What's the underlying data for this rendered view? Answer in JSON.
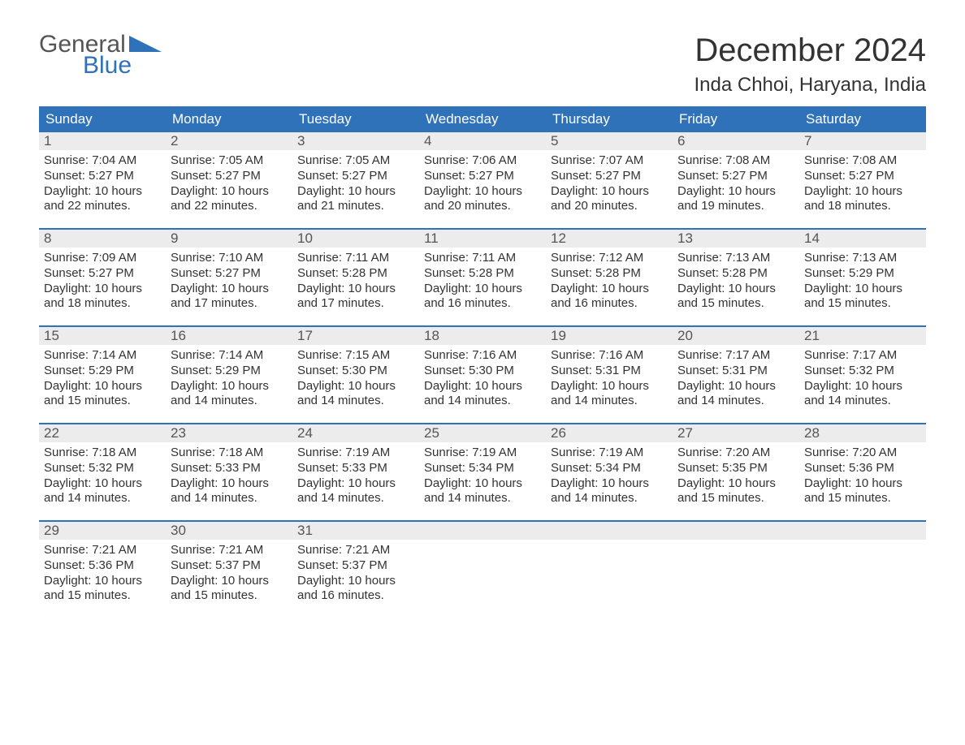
{
  "logo": {
    "part1": "General",
    "part2": "Blue"
  },
  "title": "December 2024",
  "location": "Inda Chhoi, Haryana, India",
  "colors": {
    "header_bg": "#2f72b9",
    "header_text": "#ffffff",
    "daynum_bg": "#ececec",
    "text": "#333333",
    "logo_gray": "#555555",
    "logo_blue": "#2f72b9"
  },
  "dayNames": [
    "Sunday",
    "Monday",
    "Tuesday",
    "Wednesday",
    "Thursday",
    "Friday",
    "Saturday"
  ],
  "weeks": [
    [
      {
        "n": "1",
        "sr": "Sunrise: 7:04 AM",
        "ss": "Sunset: 5:27 PM",
        "dl1": "Daylight: 10 hours",
        "dl2": "and 22 minutes."
      },
      {
        "n": "2",
        "sr": "Sunrise: 7:05 AM",
        "ss": "Sunset: 5:27 PM",
        "dl1": "Daylight: 10 hours",
        "dl2": "and 22 minutes."
      },
      {
        "n": "3",
        "sr": "Sunrise: 7:05 AM",
        "ss": "Sunset: 5:27 PM",
        "dl1": "Daylight: 10 hours",
        "dl2": "and 21 minutes."
      },
      {
        "n": "4",
        "sr": "Sunrise: 7:06 AM",
        "ss": "Sunset: 5:27 PM",
        "dl1": "Daylight: 10 hours",
        "dl2": "and 20 minutes."
      },
      {
        "n": "5",
        "sr": "Sunrise: 7:07 AM",
        "ss": "Sunset: 5:27 PM",
        "dl1": "Daylight: 10 hours",
        "dl2": "and 20 minutes."
      },
      {
        "n": "6",
        "sr": "Sunrise: 7:08 AM",
        "ss": "Sunset: 5:27 PM",
        "dl1": "Daylight: 10 hours",
        "dl2": "and 19 minutes."
      },
      {
        "n": "7",
        "sr": "Sunrise: 7:08 AM",
        "ss": "Sunset: 5:27 PM",
        "dl1": "Daylight: 10 hours",
        "dl2": "and 18 minutes."
      }
    ],
    [
      {
        "n": "8",
        "sr": "Sunrise: 7:09 AM",
        "ss": "Sunset: 5:27 PM",
        "dl1": "Daylight: 10 hours",
        "dl2": "and 18 minutes."
      },
      {
        "n": "9",
        "sr": "Sunrise: 7:10 AM",
        "ss": "Sunset: 5:27 PM",
        "dl1": "Daylight: 10 hours",
        "dl2": "and 17 minutes."
      },
      {
        "n": "10",
        "sr": "Sunrise: 7:11 AM",
        "ss": "Sunset: 5:28 PM",
        "dl1": "Daylight: 10 hours",
        "dl2": "and 17 minutes."
      },
      {
        "n": "11",
        "sr": "Sunrise: 7:11 AM",
        "ss": "Sunset: 5:28 PM",
        "dl1": "Daylight: 10 hours",
        "dl2": "and 16 minutes."
      },
      {
        "n": "12",
        "sr": "Sunrise: 7:12 AM",
        "ss": "Sunset: 5:28 PM",
        "dl1": "Daylight: 10 hours",
        "dl2": "and 16 minutes."
      },
      {
        "n": "13",
        "sr": "Sunrise: 7:13 AM",
        "ss": "Sunset: 5:28 PM",
        "dl1": "Daylight: 10 hours",
        "dl2": "and 15 minutes."
      },
      {
        "n": "14",
        "sr": "Sunrise: 7:13 AM",
        "ss": "Sunset: 5:29 PM",
        "dl1": "Daylight: 10 hours",
        "dl2": "and 15 minutes."
      }
    ],
    [
      {
        "n": "15",
        "sr": "Sunrise: 7:14 AM",
        "ss": "Sunset: 5:29 PM",
        "dl1": "Daylight: 10 hours",
        "dl2": "and 15 minutes."
      },
      {
        "n": "16",
        "sr": "Sunrise: 7:14 AM",
        "ss": "Sunset: 5:29 PM",
        "dl1": "Daylight: 10 hours",
        "dl2": "and 14 minutes."
      },
      {
        "n": "17",
        "sr": "Sunrise: 7:15 AM",
        "ss": "Sunset: 5:30 PM",
        "dl1": "Daylight: 10 hours",
        "dl2": "and 14 minutes."
      },
      {
        "n": "18",
        "sr": "Sunrise: 7:16 AM",
        "ss": "Sunset: 5:30 PM",
        "dl1": "Daylight: 10 hours",
        "dl2": "and 14 minutes."
      },
      {
        "n": "19",
        "sr": "Sunrise: 7:16 AM",
        "ss": "Sunset: 5:31 PM",
        "dl1": "Daylight: 10 hours",
        "dl2": "and 14 minutes."
      },
      {
        "n": "20",
        "sr": "Sunrise: 7:17 AM",
        "ss": "Sunset: 5:31 PM",
        "dl1": "Daylight: 10 hours",
        "dl2": "and 14 minutes."
      },
      {
        "n": "21",
        "sr": "Sunrise: 7:17 AM",
        "ss": "Sunset: 5:32 PM",
        "dl1": "Daylight: 10 hours",
        "dl2": "and 14 minutes."
      }
    ],
    [
      {
        "n": "22",
        "sr": "Sunrise: 7:18 AM",
        "ss": "Sunset: 5:32 PM",
        "dl1": "Daylight: 10 hours",
        "dl2": "and 14 minutes."
      },
      {
        "n": "23",
        "sr": "Sunrise: 7:18 AM",
        "ss": "Sunset: 5:33 PM",
        "dl1": "Daylight: 10 hours",
        "dl2": "and 14 minutes."
      },
      {
        "n": "24",
        "sr": "Sunrise: 7:19 AM",
        "ss": "Sunset: 5:33 PM",
        "dl1": "Daylight: 10 hours",
        "dl2": "and 14 minutes."
      },
      {
        "n": "25",
        "sr": "Sunrise: 7:19 AM",
        "ss": "Sunset: 5:34 PM",
        "dl1": "Daylight: 10 hours",
        "dl2": "and 14 minutes."
      },
      {
        "n": "26",
        "sr": "Sunrise: 7:19 AM",
        "ss": "Sunset: 5:34 PM",
        "dl1": "Daylight: 10 hours",
        "dl2": "and 14 minutes."
      },
      {
        "n": "27",
        "sr": "Sunrise: 7:20 AM",
        "ss": "Sunset: 5:35 PM",
        "dl1": "Daylight: 10 hours",
        "dl2": "and 15 minutes."
      },
      {
        "n": "28",
        "sr": "Sunrise: 7:20 AM",
        "ss": "Sunset: 5:36 PM",
        "dl1": "Daylight: 10 hours",
        "dl2": "and 15 minutes."
      }
    ],
    [
      {
        "n": "29",
        "sr": "Sunrise: 7:21 AM",
        "ss": "Sunset: 5:36 PM",
        "dl1": "Daylight: 10 hours",
        "dl2": "and 15 minutes."
      },
      {
        "n": "30",
        "sr": "Sunrise: 7:21 AM",
        "ss": "Sunset: 5:37 PM",
        "dl1": "Daylight: 10 hours",
        "dl2": "and 15 minutes."
      },
      {
        "n": "31",
        "sr": "Sunrise: 7:21 AM",
        "ss": "Sunset: 5:37 PM",
        "dl1": "Daylight: 10 hours",
        "dl2": "and 16 minutes."
      },
      {
        "n": "",
        "sr": "",
        "ss": "",
        "dl1": "",
        "dl2": ""
      },
      {
        "n": "",
        "sr": "",
        "ss": "",
        "dl1": "",
        "dl2": ""
      },
      {
        "n": "",
        "sr": "",
        "ss": "",
        "dl1": "",
        "dl2": ""
      },
      {
        "n": "",
        "sr": "",
        "ss": "",
        "dl1": "",
        "dl2": ""
      }
    ]
  ]
}
